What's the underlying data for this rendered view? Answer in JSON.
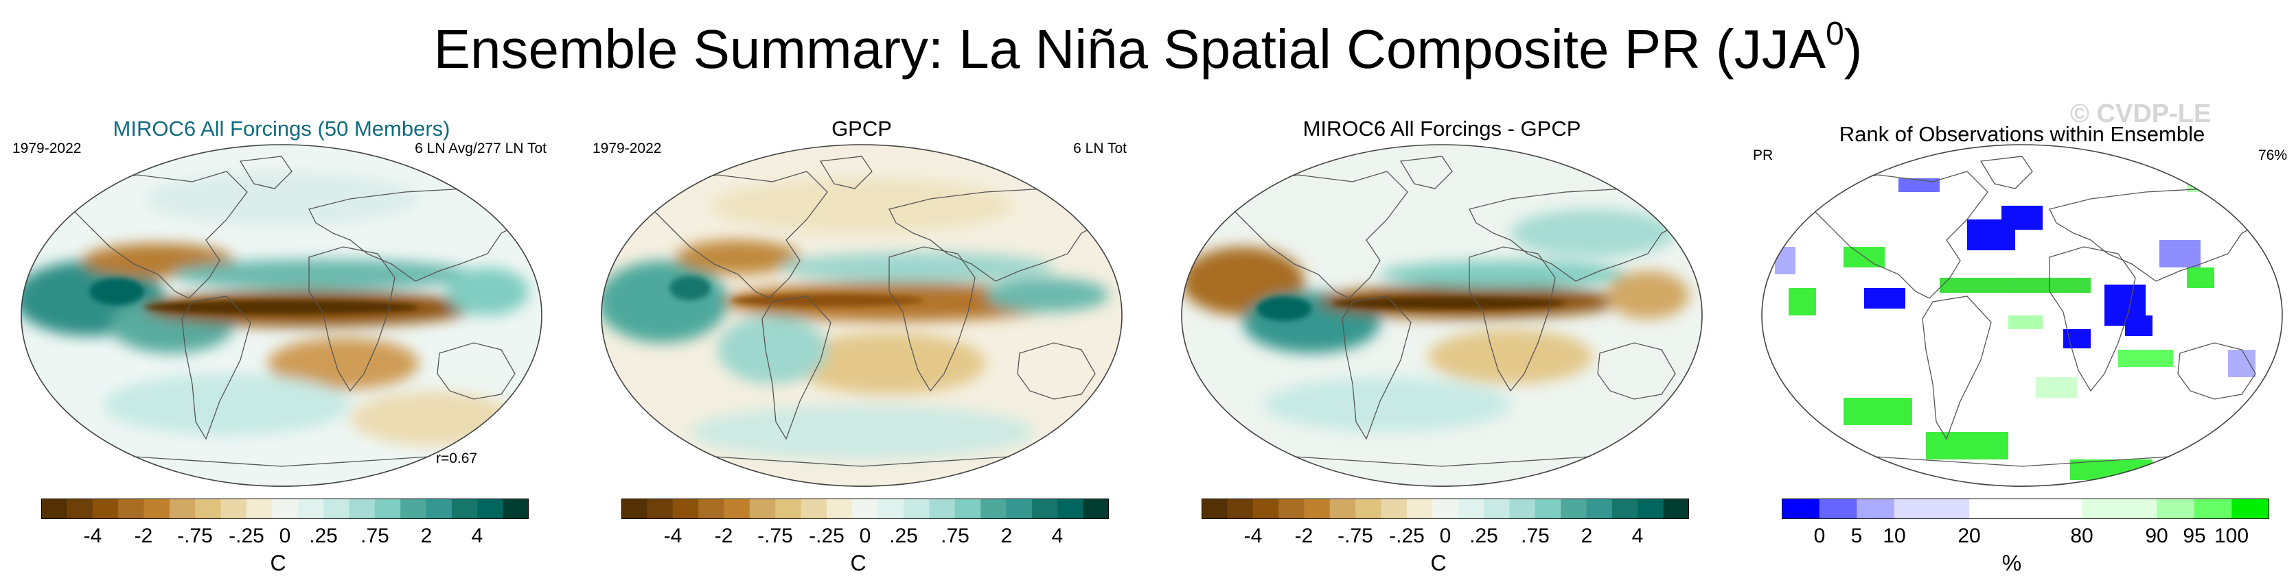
{
  "title": "Ensemble Summary: La Niña Spatial Composite PR (JJA",
  "title_superscript": "0",
  "title_close": ")",
  "watermark": "© CVDP-LE",
  "panels": [
    {
      "title": "MIROC6 All Forcings (50 Members)",
      "left_label": "1979-2022",
      "right_label": "6 LN Avg/277 LN Tot",
      "corr_label": "r=0.67"
    },
    {
      "title": "GPCP",
      "left_label": "1979-2022",
      "right_label": "6 LN Tot"
    },
    {
      "title": "MIROC6 All Forcings - GPCP"
    },
    {
      "title": "Rank of Observations within Ensemble",
      "left_label": "PR",
      "right_label": "76%"
    }
  ],
  "colorbar_brbg": {
    "colors": [
      "#543005",
      "#6e4009",
      "#8c510a",
      "#a86d22",
      "#bf812d",
      "#d2a865",
      "#dfc27d",
      "#ead7a8",
      "#f3ecd0",
      "#f1f5f0",
      "#dff2ee",
      "#c7eae5",
      "#a6dcd3",
      "#80cdc1",
      "#4ea99c",
      "#35978f",
      "#16766c",
      "#01665e",
      "#003c30"
    ],
    "tick_labels": [
      "-4",
      "-2",
      "-.75",
      "-.25",
      "0",
      ".25",
      ".75",
      "2",
      "4"
    ],
    "unit": "C"
  },
  "colorbar_rank": {
    "colors": [
      "#0000ff",
      "#6666ff",
      "#aaaaff",
      "#dcdcff",
      "#dcdcff",
      "#ffffff",
      "#ffffff",
      "#ffffff",
      "#e0ffe0",
      "#e0ffe0",
      "#aaffaa",
      "#66ff66",
      "#00ee00"
    ],
    "tick_labels": [
      "0",
      "5",
      "10",
      "20",
      "80",
      "90",
      "95",
      "100"
    ],
    "unit": "%"
  }
}
